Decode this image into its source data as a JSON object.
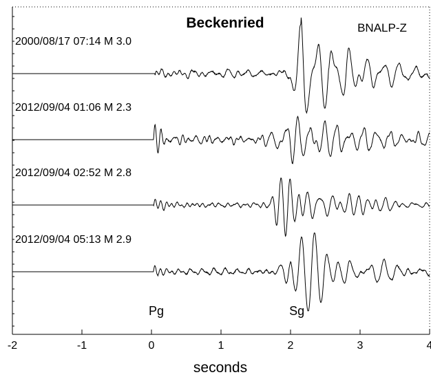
{
  "chart_data": {
    "type": "line",
    "title": "Beckenried",
    "station": "BNALP-Z",
    "xlabel": "seconds",
    "ylabel": "",
    "xlim": [
      -2,
      4
    ],
    "xticks": [
      -2,
      -1,
      0,
      1,
      2,
      3,
      4
    ],
    "grid": false,
    "phase_labels": [
      {
        "label": "Pg",
        "x": 0.07
      },
      {
        "label": "Sg",
        "x": 2.09
      }
    ],
    "series": [
      {
        "name": "2000/08/17 07:14  M 3.0",
        "onset_s": 0.05,
        "s_arrival": 2.15,
        "s_amp": 3.6,
        "p_amp": 0.4,
        "noise": 0.5,
        "coda": 0.7,
        "seed": 11
      },
      {
        "name": "2012/09/04 01:06  M 2.3",
        "onset_s": 0.03,
        "s_arrival": 1.88,
        "s_amp": 3.4,
        "p_amp": 1.9,
        "noise": 0.45,
        "coda": 0.5,
        "seed": 23
      },
      {
        "name": "2012/09/04 02:52  M 2.8",
        "onset_s": 0.03,
        "s_arrival": 1.9,
        "s_amp": 3.0,
        "p_amp": 1.0,
        "noise": 0.35,
        "coda": 0.45,
        "seed": 37
      },
      {
        "name": "2012/09/04 05:13  M 2.9",
        "onset_s": 0.03,
        "s_arrival": 2.0,
        "s_amp": 3.4,
        "p_amp": 0.8,
        "noise": 0.5,
        "coda": 0.7,
        "seed": 53
      }
    ]
  }
}
